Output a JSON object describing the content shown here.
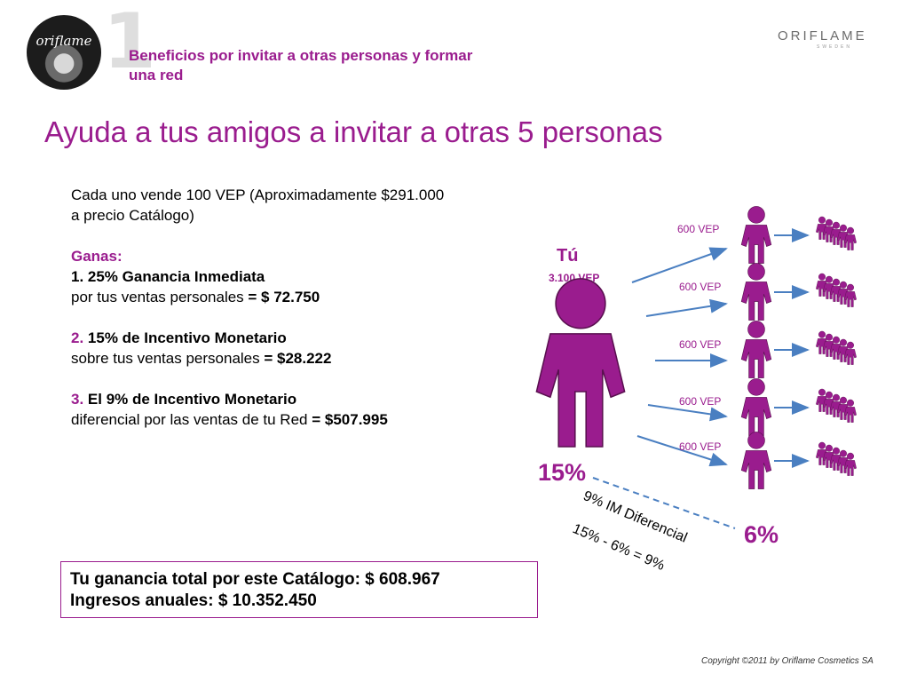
{
  "header": {
    "logo_word": "oriflame",
    "number": "1",
    "subtitle": "Beneficios por invitar a otras personas y formar una red",
    "brand": "ORIFLAME",
    "brand_sub": "SWEDEN"
  },
  "headline": "Ayuda a tus amigos a invitar a otras 5 personas",
  "body": {
    "intro_line1": "Cada uno vende 100 VEP (Aproximadamente $291.000",
    "intro_line2": "a precio Catálogo)",
    "ganas_label": "Ganas:",
    "item1_title": "1.    25% Ganancia Inmediata",
    "item1_text": "por tus ventas personales",
    "item1_value": " = $ 72.750",
    "item2_num": "2.",
    "item2_title": " 15% de Incentivo Monetario",
    "item2_text": "sobre tus ventas personales  ",
    "item2_value": "= $28.222",
    "item3_num": "3.",
    "item3_title": " El 9% de Incentivo Monetario",
    "item3_text": " diferencial por las ventas de tu Red ",
    "item3_value": "= $507.995"
  },
  "diagram": {
    "you_label": "Tú",
    "you_vep": "3.100 VEP",
    "friends": [
      {
        "vep": "600 VEP"
      },
      {
        "vep": "600 VEP"
      },
      {
        "vep": "600 VEP"
      },
      {
        "vep": "600 VEP"
      },
      {
        "vep": "600 VEP"
      }
    ],
    "pct_left": "15%",
    "pct_right": "6%",
    "im_label": "9% IM Diferencial",
    "formula": "15% - 6% = 9%"
  },
  "summary": {
    "line1": "Tu ganancia total por este Catálogo: $ 608.967",
    "line2": "Ingresos anuales: $ 10.352.450"
  },
  "copyright": "Copyright ©2011 by Oriflame Cosmetics SA",
  "colors": {
    "accent": "#9a1c8e",
    "arrow": "#4a7fc1"
  }
}
